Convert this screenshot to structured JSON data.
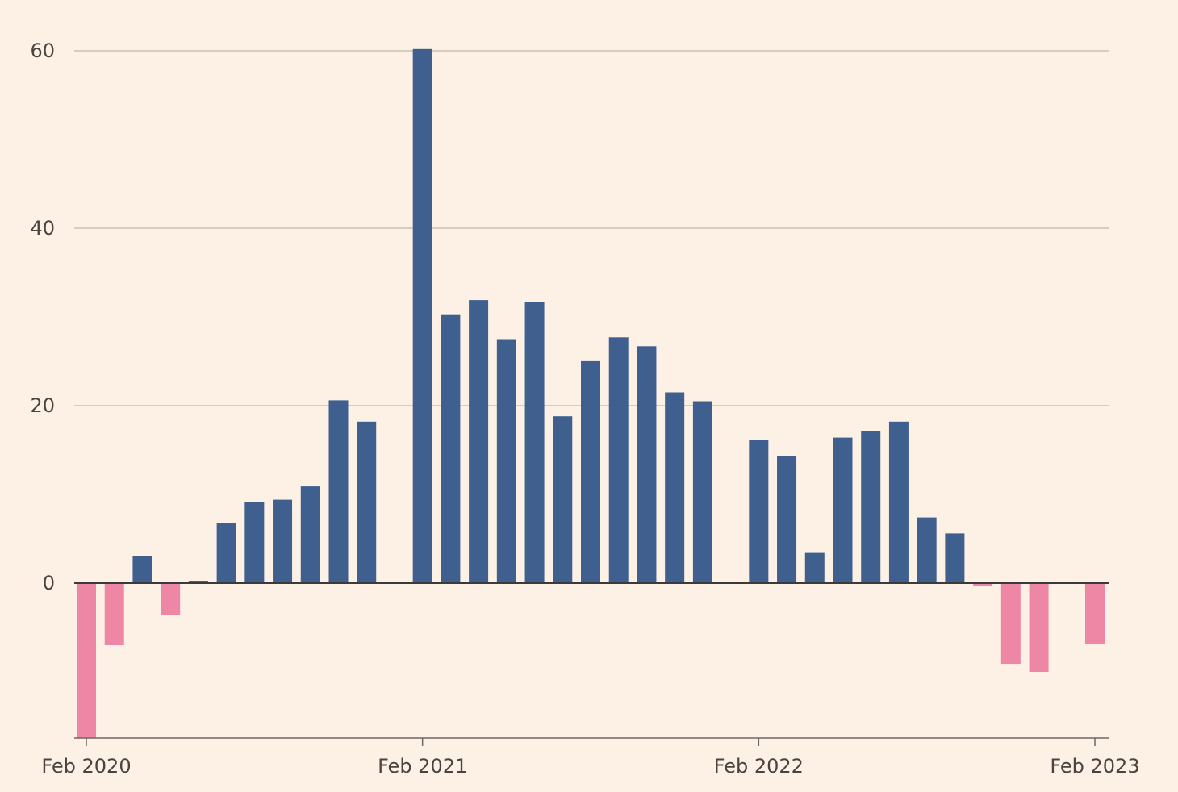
{
  "chart_data": {
    "type": "bar",
    "x_tick_labels": [
      "Feb 2020",
      "Feb 2021",
      "Feb 2022",
      "Feb 2023"
    ],
    "y_tick_values": [
      0,
      20,
      40,
      60
    ],
    "ylim": [
      -17.5,
      62
    ],
    "grid": true,
    "colors": {
      "background": "#fdf1e6",
      "positive": "#3f5f8f",
      "negative": "#ee86a6"
    },
    "bars": [
      {
        "period": "2020-02",
        "value": -17.5
      },
      {
        "period": "2020-03",
        "value": -7.0
      },
      {
        "period": "2020-04",
        "value": 3.0
      },
      {
        "period": "2020-05",
        "value": -3.6
      },
      {
        "period": "2020-06",
        "value": 0.2
      },
      {
        "period": "2020-07",
        "value": 6.8
      },
      {
        "period": "2020-08",
        "value": 9.1
      },
      {
        "period": "2020-09",
        "value": 9.4
      },
      {
        "period": "2020-10",
        "value": 10.9
      },
      {
        "period": "2020-11",
        "value": 20.6
      },
      {
        "period": "2020-12",
        "value": 18.2
      },
      {
        "period": "2021-02",
        "value": 60.2
      },
      {
        "period": "2021-03",
        "value": 30.3
      },
      {
        "period": "2021-04",
        "value": 31.9
      },
      {
        "period": "2021-05",
        "value": 27.5
      },
      {
        "period": "2021-06",
        "value": 31.7
      },
      {
        "period": "2021-07",
        "value": 18.8
      },
      {
        "period": "2021-08",
        "value": 25.1
      },
      {
        "period": "2021-09",
        "value": 27.7
      },
      {
        "period": "2021-10",
        "value": 26.7
      },
      {
        "period": "2021-11",
        "value": 21.5
      },
      {
        "period": "2021-12",
        "value": 20.5
      },
      {
        "period": "2022-02",
        "value": 16.1
      },
      {
        "period": "2022-03",
        "value": 14.3
      },
      {
        "period": "2022-04",
        "value": 3.4
      },
      {
        "period": "2022-05",
        "value": 16.4
      },
      {
        "period": "2022-06",
        "value": 17.1
      },
      {
        "period": "2022-07",
        "value": 18.2
      },
      {
        "period": "2022-08",
        "value": 7.4
      },
      {
        "period": "2022-09",
        "value": 5.6
      },
      {
        "period": "2022-10",
        "value": -0.3
      },
      {
        "period": "2022-11",
        "value": -9.1
      },
      {
        "period": "2022-12",
        "value": -10.0
      },
      {
        "period": "2023-02",
        "value": -6.9
      }
    ]
  }
}
